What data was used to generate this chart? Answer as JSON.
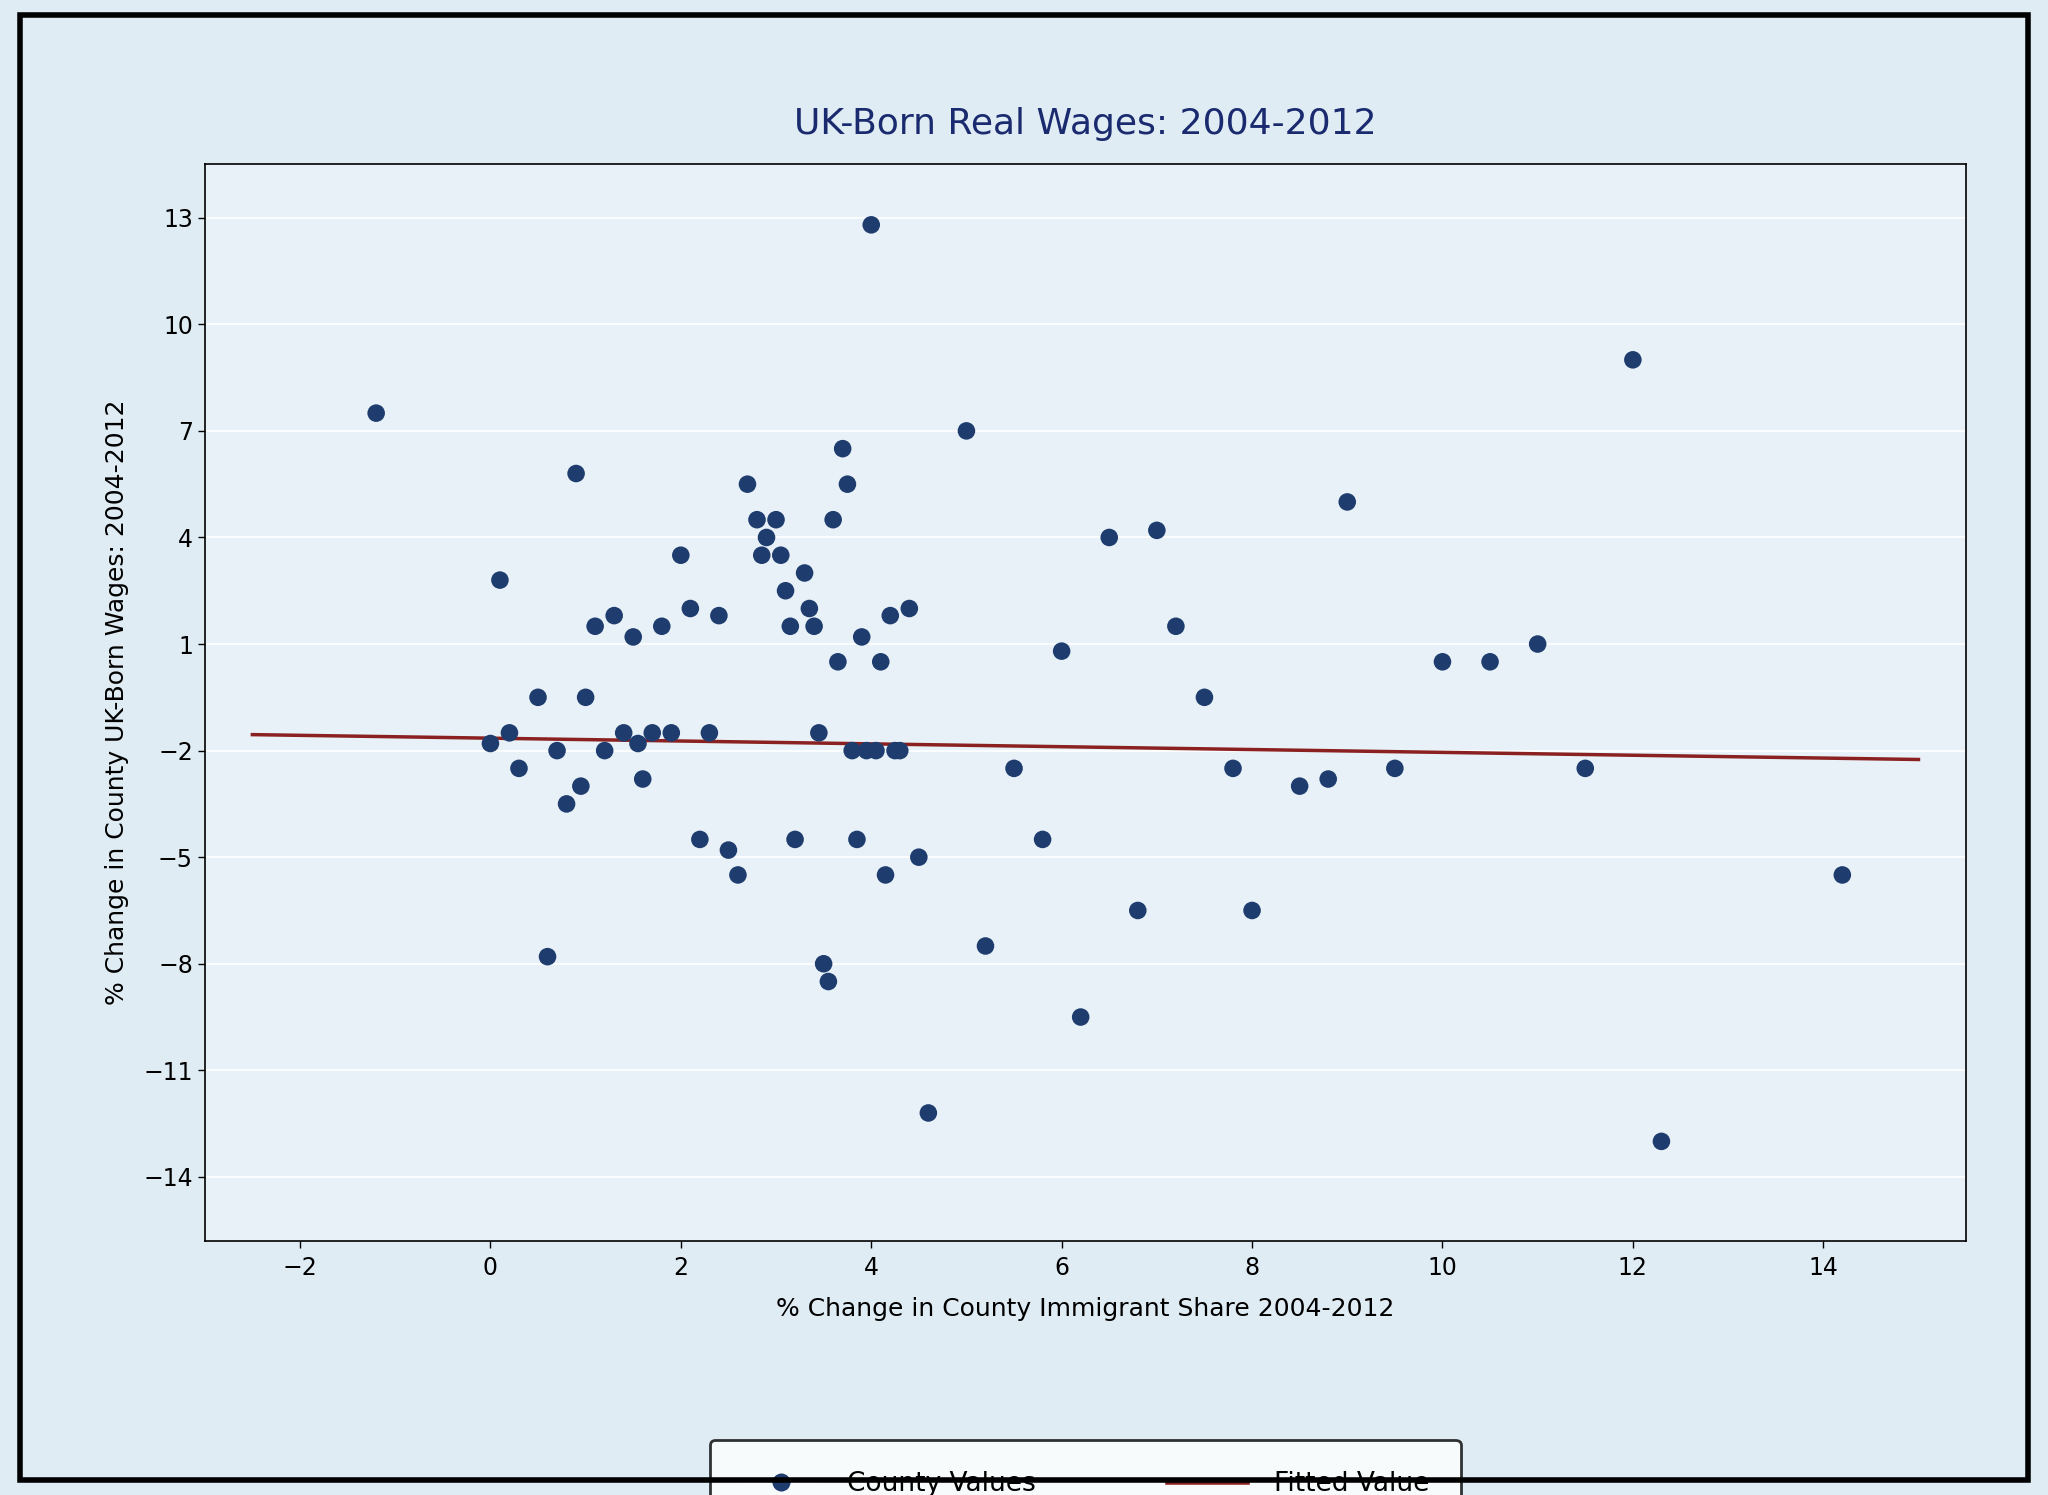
{
  "title": "UK-Born Real Wages: 2004-2012",
  "xlabel": "% Change in County Immigrant Share 2004-2012",
  "ylabel": "% Change in County UK-Born Wages: 2004-2012",
  "xlim": [
    -3.0,
    15.5
  ],
  "ylim": [
    -15.8,
    14.5
  ],
  "xticks": [
    -2,
    0,
    2,
    4,
    6,
    8,
    10,
    12,
    14
  ],
  "yticks": [
    -14,
    -11,
    -8,
    -5,
    -2,
    1,
    4,
    7,
    10,
    13
  ],
  "outer_bg_color": "#e0ecf4",
  "plot_bg_color": "#e8f1f8",
  "dot_color": "#1e3d6e",
  "line_color": "#8b2020",
  "scatter_x": [
    -1.2,
    0.0,
    0.1,
    0.2,
    0.3,
    0.5,
    0.6,
    0.7,
    0.8,
    0.9,
    0.95,
    1.0,
    1.1,
    1.2,
    1.3,
    1.4,
    1.5,
    1.55,
    1.6,
    1.7,
    1.8,
    1.9,
    2.0,
    2.1,
    2.2,
    2.3,
    2.4,
    2.5,
    2.6,
    2.7,
    2.8,
    2.85,
    2.9,
    3.0,
    3.05,
    3.1,
    3.15,
    3.2,
    3.3,
    3.35,
    3.4,
    3.45,
    3.5,
    3.55,
    3.6,
    3.65,
    3.7,
    3.75,
    3.8,
    3.85,
    3.9,
    3.95,
    4.0,
    4.05,
    4.1,
    4.15,
    4.2,
    4.25,
    4.3,
    4.4,
    4.5,
    4.6,
    5.0,
    5.2,
    5.5,
    5.8,
    6.0,
    6.2,
    6.5,
    6.8,
    7.0,
    7.2,
    7.5,
    7.8,
    8.0,
    8.5,
    8.8,
    9.0,
    9.5,
    10.0,
    10.5,
    11.0,
    11.5,
    12.0,
    12.3,
    14.2
  ],
  "scatter_y": [
    7.5,
    -1.8,
    2.8,
    -1.5,
    -2.5,
    -0.5,
    -7.8,
    -2.0,
    -3.5,
    5.8,
    -3.0,
    -0.5,
    1.5,
    -2.0,
    1.8,
    -1.5,
    1.2,
    -1.8,
    -2.8,
    -1.5,
    1.5,
    -1.5,
    3.5,
    2.0,
    -4.5,
    -1.5,
    1.8,
    -4.8,
    -5.5,
    5.5,
    4.5,
    3.5,
    4.0,
    4.5,
    3.5,
    2.5,
    1.5,
    -4.5,
    3.0,
    2.0,
    1.5,
    -1.5,
    -8.0,
    -8.5,
    4.5,
    0.5,
    6.5,
    5.5,
    -2.0,
    -4.5,
    1.2,
    -2.0,
    12.8,
    -2.0,
    0.5,
    -5.5,
    1.8,
    -2.0,
    -2.0,
    2.0,
    -5.0,
    -12.2,
    7.0,
    -7.5,
    -2.5,
    -4.5,
    0.8,
    -9.5,
    4.0,
    -6.5,
    4.2,
    1.5,
    -0.5,
    -2.5,
    -6.5,
    -3.0,
    -2.8,
    5.0,
    -2.5,
    0.5,
    0.5,
    1.0,
    -2.5,
    9.0,
    -13.0,
    -5.5
  ],
  "fit_x_start": -2.5,
  "fit_x_end": 15.0,
  "fit_y_start": -1.55,
  "fit_y_end": -2.25,
  "legend_labels": [
    "County Values",
    "Fitted Value"
  ],
  "title_fontsize": 26,
  "label_fontsize": 18,
  "tick_fontsize": 17,
  "border_color": "#000000",
  "border_linewidth": 4
}
